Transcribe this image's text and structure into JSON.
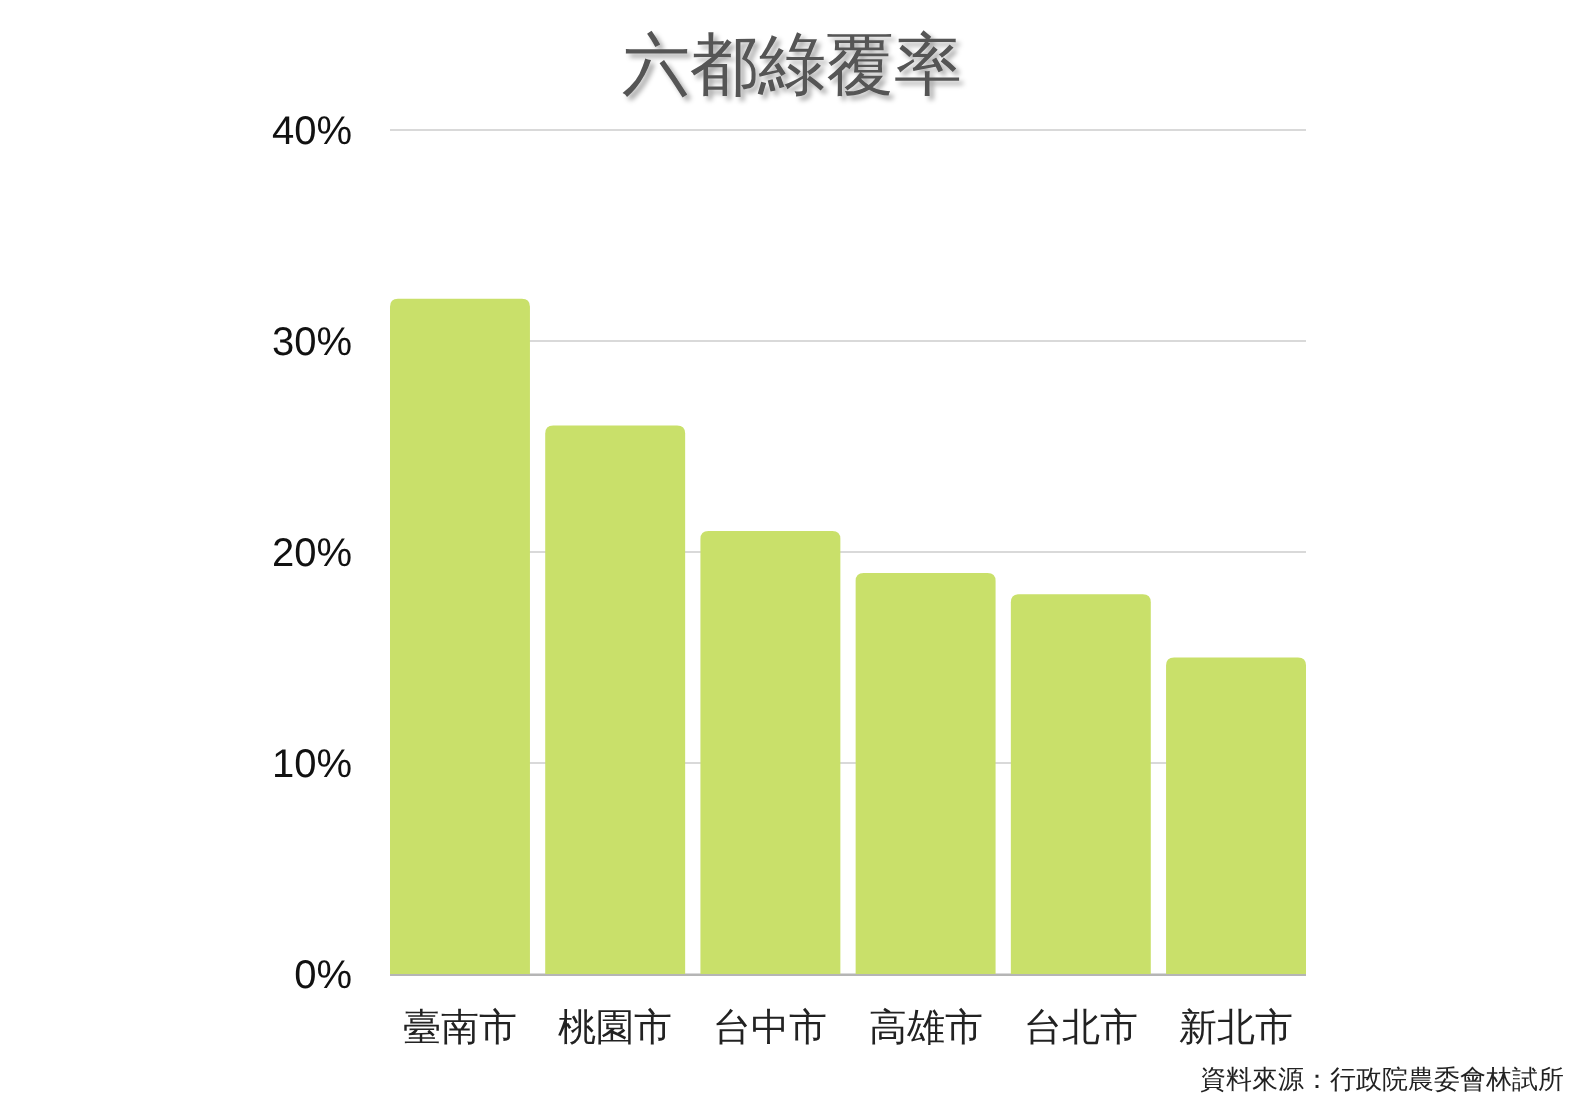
{
  "chart_data": {
    "type": "bar",
    "title": "六都綠覆率",
    "categories": [
      "臺南市",
      "桃園市",
      "台中市",
      "高雄市",
      "台北市",
      "新北市"
    ],
    "values": [
      32,
      26,
      21,
      19,
      18,
      15
    ],
    "color": "#c9e06a",
    "ylim": [
      0,
      40
    ],
    "yticks": [
      {
        "value": 0,
        "label": "0%"
      },
      {
        "value": 10,
        "label": "10%"
      },
      {
        "value": 20,
        "label": "20%"
      },
      {
        "value": 30,
        "label": "30%"
      },
      {
        "value": 40,
        "label": "40%"
      }
    ],
    "grid": "y",
    "annotations": [
      "資料來源：行政院農委會林試所"
    ]
  }
}
